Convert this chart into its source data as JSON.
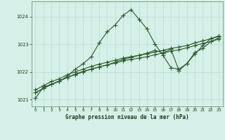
{
  "title": "Graphe pression niveau de la mer (hPa)",
  "background_color": "#d5f0e8",
  "grid_color": "#b8ddd0",
  "line_color": "#2d5a2d",
  "marker_color": "#2d5a2d",
  "ylim": [
    1020.75,
    1024.55
  ],
  "xlim": [
    -0.5,
    23.5
  ],
  "yticks": [
    1021,
    1022,
    1023,
    1024
  ],
  "xticks": [
    0,
    1,
    2,
    3,
    4,
    5,
    6,
    7,
    8,
    9,
    10,
    11,
    12,
    13,
    14,
    15,
    16,
    17,
    18,
    19,
    20,
    21,
    22,
    23
  ],
  "series1": [
    1021.05,
    1021.45,
    1021.55,
    1021.65,
    1021.85,
    1022.1,
    1022.3,
    1022.55,
    1023.05,
    1023.45,
    1023.7,
    1024.05,
    1024.25,
    1023.9,
    1023.55,
    1023.0,
    1022.6,
    1022.15,
    1022.1,
    1022.3,
    1022.65,
    1022.95,
    1023.2,
    1023.3
  ],
  "series2": [
    1021.35,
    1021.5,
    1021.65,
    1021.75,
    1021.9,
    1022.0,
    1022.1,
    1022.2,
    1022.28,
    1022.35,
    1022.42,
    1022.5,
    1022.55,
    1022.6,
    1022.65,
    1022.72,
    1022.78,
    1022.85,
    1022.9,
    1022.95,
    1023.05,
    1023.12,
    1023.2,
    1023.28
  ],
  "series3": [
    1021.25,
    1021.4,
    1021.55,
    1021.67,
    1021.8,
    1021.9,
    1022.0,
    1022.1,
    1022.18,
    1022.25,
    1022.32,
    1022.4,
    1022.45,
    1022.5,
    1022.55,
    1022.62,
    1022.68,
    1022.75,
    1022.8,
    1022.87,
    1022.95,
    1023.03,
    1023.1,
    1023.18
  ],
  "series4": [
    1021.25,
    1021.4,
    1021.55,
    1021.67,
    1021.8,
    1021.92,
    1022.02,
    1022.1,
    1022.18,
    1022.25,
    1022.35,
    1022.45,
    1022.52,
    1022.6,
    1022.68,
    1022.78,
    1022.68,
    1022.82,
    1022.05,
    1022.3,
    1022.7,
    1022.85,
    1023.1,
    1023.22
  ]
}
